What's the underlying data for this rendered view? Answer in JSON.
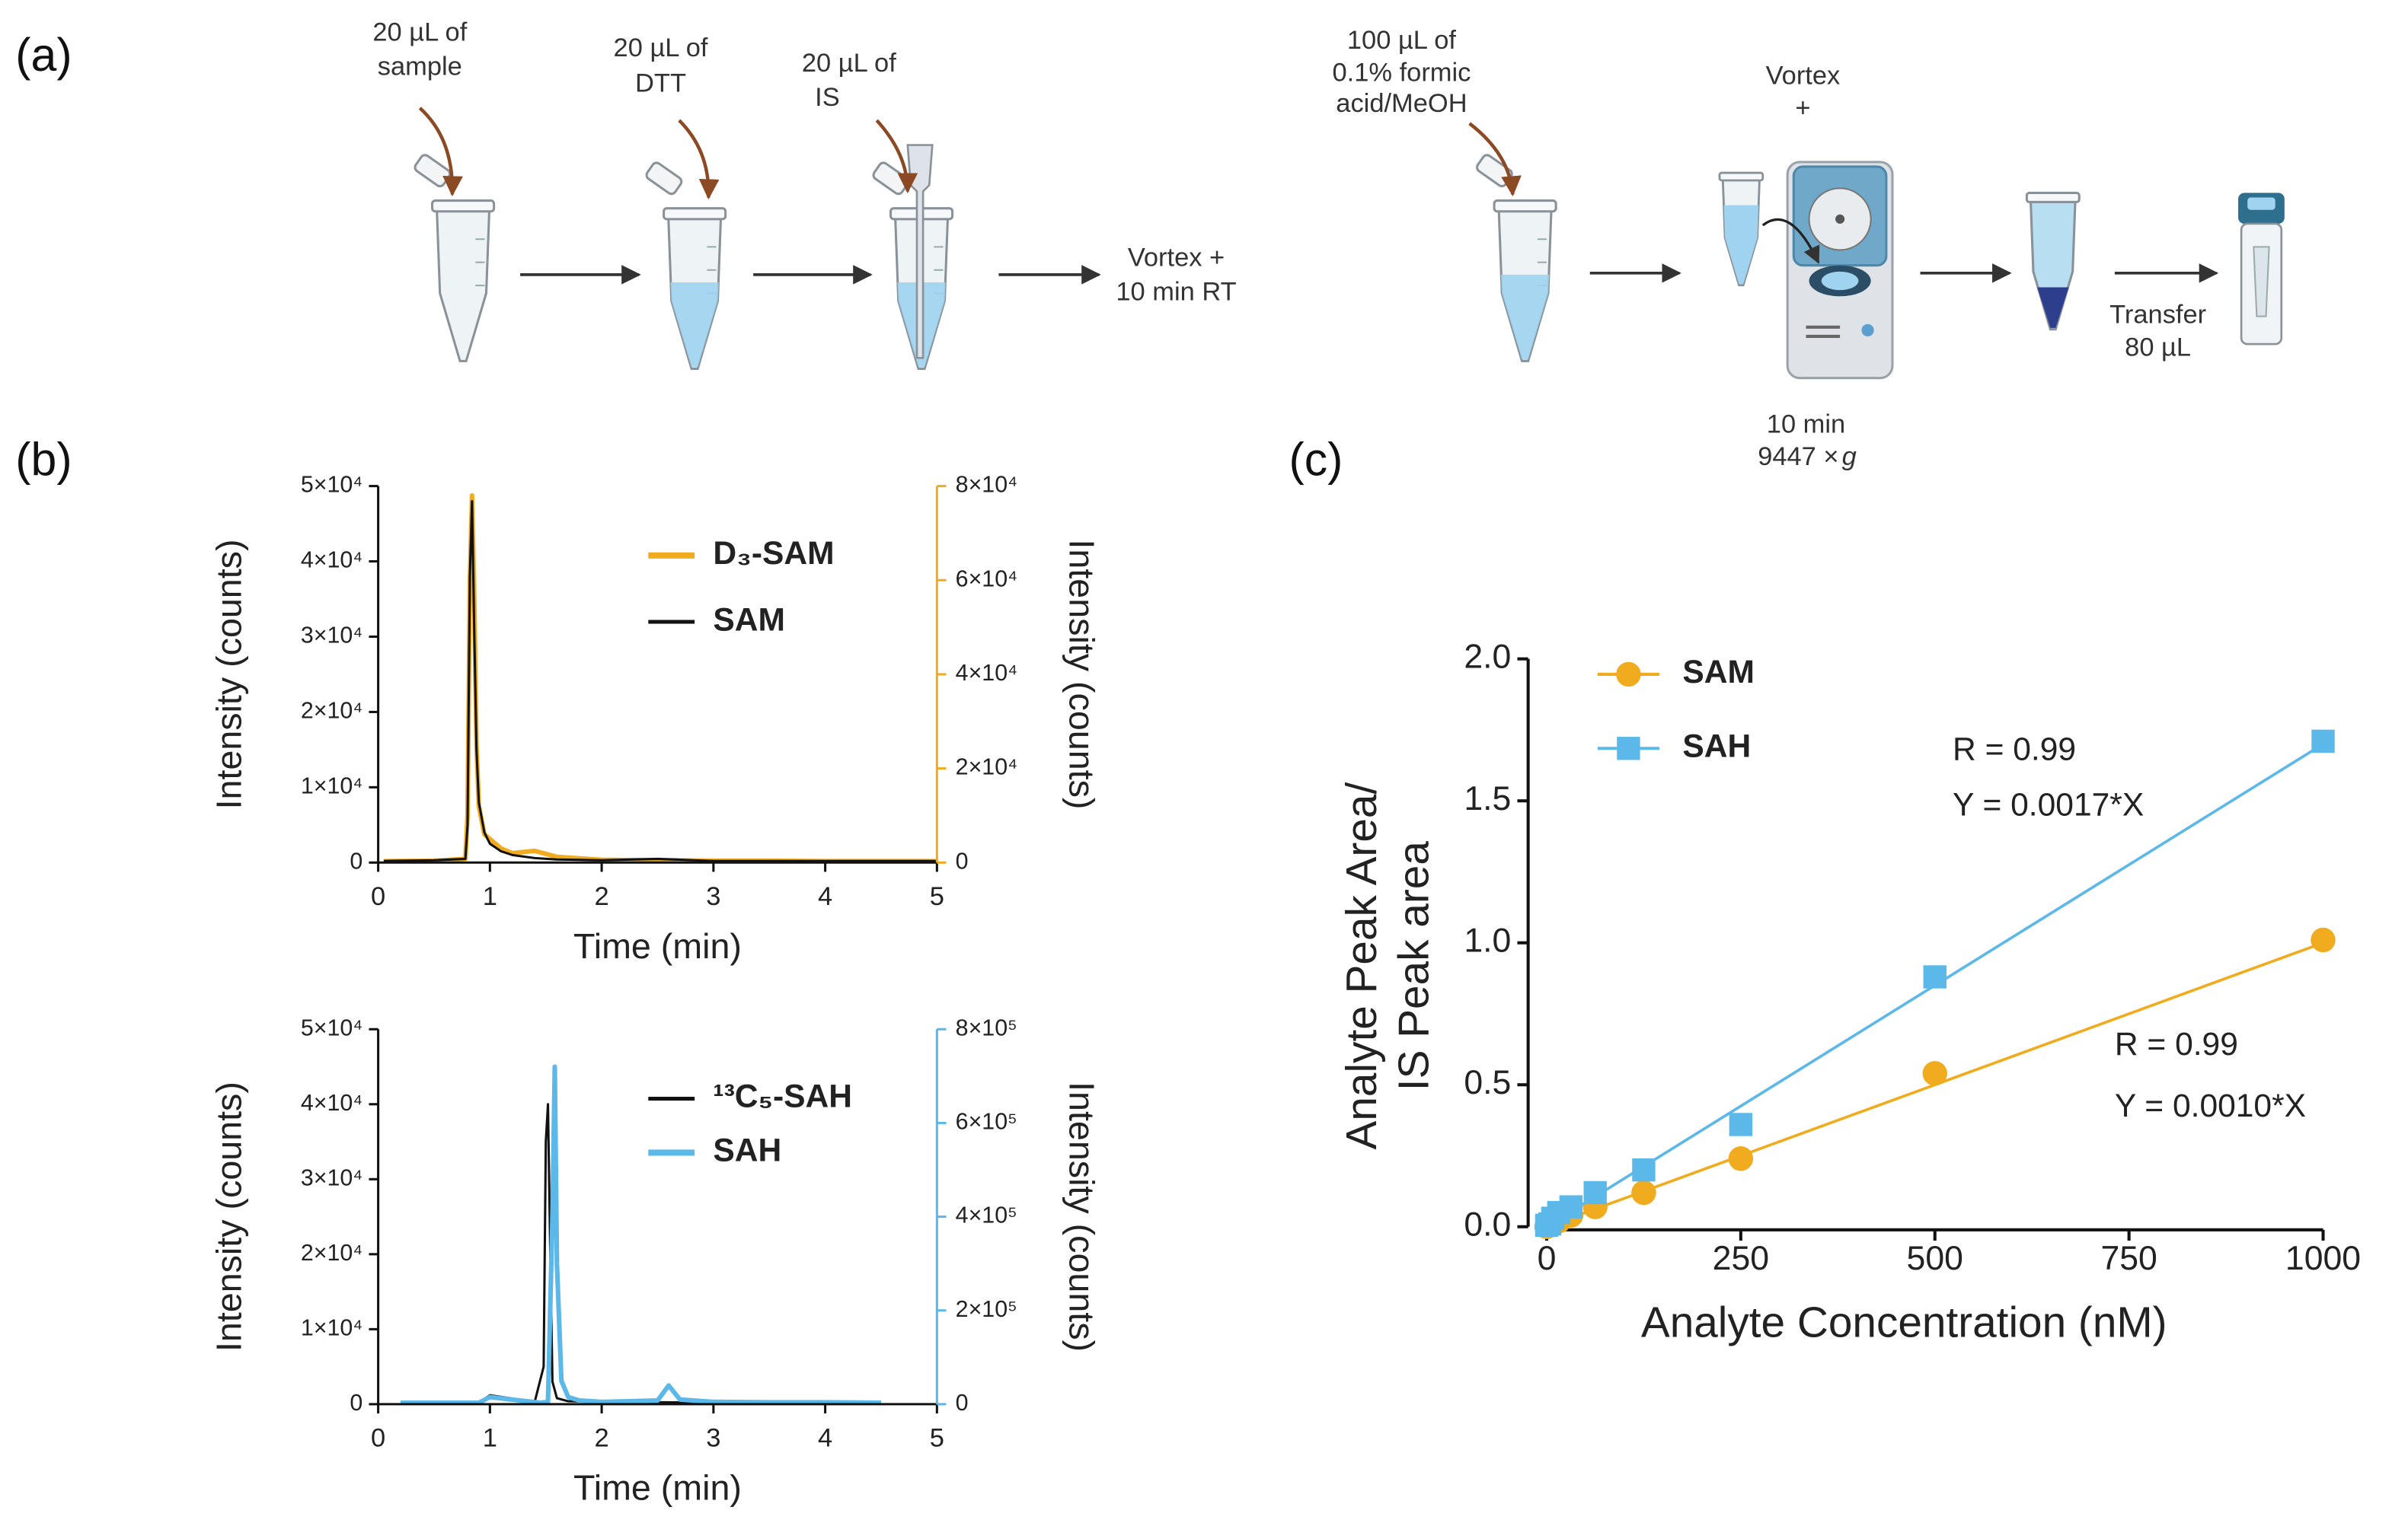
{
  "diagram": {
    "panel_label": "(a)",
    "labels": [
      {
        "lines": [
          "20 µL of",
          "sample"
        ]
      },
      {
        "lines": [
          "20 µL of",
          "DTT"
        ]
      },
      {
        "lines": [
          "20 µL of",
          "IS"
        ]
      },
      {
        "lines": [
          "Vortex +",
          "10 min RT"
        ]
      },
      {
        "lines": [
          "100 µL of",
          "0.1% formic",
          "acid/MeOH"
        ]
      },
      {
        "lines": [
          "Vortex",
          "+"
        ]
      },
      {
        "lines": [
          "10 min",
          "9447 ×"
        ],
        "italic_suffix": "g"
      },
      {
        "lines": [
          "Transfer",
          "80 µL"
        ]
      }
    ]
  },
  "chart_data": [
    {
      "type": "line",
      "panel_label": "(b)",
      "xlabel": "Time (min)",
      "ylabel": "Intensity (counts)",
      "y2label": "Intensity (counts)",
      "y2color": "#f0ac1e",
      "xlim": [
        0,
        5
      ],
      "xticks": [
        0,
        1,
        2,
        3,
        4,
        5
      ],
      "ylim": [
        0,
        50000
      ],
      "yticks": [
        0,
        {
          "value": 10000,
          "label": "1×10⁴"
        },
        {
          "value": 20000,
          "label": "2×10⁴"
        },
        {
          "value": 30000,
          "label": "3×10⁴"
        },
        {
          "value": 40000,
          "label": "4×10⁴"
        },
        {
          "value": 50000,
          "label": "5×10⁴"
        }
      ],
      "y2lim": [
        0,
        80000
      ],
      "y2ticks": [
        0,
        {
          "value": 20000,
          "label": "2×10⁴"
        },
        {
          "value": 40000,
          "label": "4×10⁴"
        },
        {
          "value": 60000,
          "label": "6×10⁴"
        },
        {
          "value": 80000,
          "label": "8×10⁴"
        }
      ],
      "series": [
        {
          "name": "D₃-SAM",
          "color": "#f0ac1e",
          "axis": "y2",
          "width": 3,
          "x": [
            0.05,
            0.5,
            0.78,
            0.8,
            0.82,
            0.84,
            0.86,
            0.88,
            0.9,
            0.95,
            1.0,
            1.1,
            1.2,
            1.4,
            1.6,
            2,
            2.5,
            3,
            3.5,
            4,
            4.5,
            5
          ],
          "values": [
            300,
            400,
            800,
            10000,
            60000,
            78000,
            55000,
            25000,
            12000,
            6000,
            5000,
            3000,
            2000,
            2500,
            1200,
            600,
            500,
            400,
            400,
            300,
            300,
            300
          ]
        },
        {
          "name": "SAM",
          "color": "#111111",
          "width": 1.5,
          "x": [
            0.05,
            0.5,
            0.78,
            0.8,
            0.82,
            0.84,
            0.86,
            0.88,
            0.9,
            0.95,
            1.0,
            1.1,
            1.2,
            1.4,
            1.6,
            2,
            2.5,
            3,
            3.5,
            4,
            4.5,
            5
          ],
          "values": [
            200,
            300,
            500,
            5000,
            38000,
            48000,
            30000,
            15000,
            8000,
            4000,
            2500,
            1500,
            1000,
            600,
            400,
            300,
            500,
            200,
            200,
            200,
            200,
            200
          ]
        }
      ]
    },
    {
      "type": "line",
      "xlabel": "Time (min)",
      "ylabel": "Intensity (counts)",
      "y2label": "Intensity (counts)",
      "y2color": "#5bb8e8",
      "xlim": [
        0,
        5
      ],
      "xticks": [
        0,
        1,
        2,
        3,
        4,
        5
      ],
      "ylim": [
        0,
        50000
      ],
      "yticks": [
        0,
        {
          "value": 10000,
          "label": "1×10⁴"
        },
        {
          "value": 20000,
          "label": "2×10⁴"
        },
        {
          "value": 30000,
          "label": "3×10⁴"
        },
        {
          "value": 40000,
          "label": "4×10⁴"
        },
        {
          "value": 50000,
          "label": "5×10⁴"
        }
      ],
      "y2lim": [
        0,
        800000
      ],
      "y2ticks": [
        0,
        {
          "value": 200000,
          "label": "2×10⁵"
        },
        {
          "value": 400000,
          "label": "4×10⁵"
        },
        {
          "value": 600000,
          "label": "6×10⁵"
        },
        {
          "value": 800000,
          "label": "8×10⁵"
        }
      ],
      "series": [
        {
          "name": "¹³C₅-SAH",
          "color": "#111111",
          "width": 1.5,
          "x": [
            0.2,
            0.9,
            1.0,
            1.4,
            1.48,
            1.5,
            1.52,
            1.54,
            1.56,
            1.6,
            1.7,
            2,
            3,
            4,
            4.5
          ],
          "values": [
            200,
            200,
            1200,
            300,
            5000,
            35000,
            40000,
            20000,
            3000,
            800,
            400,
            300,
            200,
            200,
            200
          ]
        },
        {
          "name": "SAH",
          "color": "#5bb8e8",
          "axis": "y2",
          "width": 3,
          "x": [
            0.2,
            0.9,
            1.0,
            1.45,
            1.52,
            1.56,
            1.58,
            1.6,
            1.64,
            1.7,
            1.8,
            2,
            2.5,
            2.6,
            2.7,
            3,
            3.5,
            4,
            4.5
          ],
          "values": [
            3000,
            3000,
            15000,
            3000,
            5000,
            400000,
            720000,
            300000,
            50000,
            15000,
            8000,
            5000,
            8000,
            40000,
            10000,
            5000,
            4000,
            4000,
            3000
          ]
        }
      ]
    },
    {
      "type": "scatter",
      "panel_label": "(c)",
      "xlabel": "Analyte Concentration (nM)",
      "ylabel": [
        "Analyte Peak Area/",
        "IS Peak area"
      ],
      "xlim": [
        0,
        1000
      ],
      "xticks": [
        0,
        250,
        500,
        750,
        1000
      ],
      "ylim": [
        0,
        2
      ],
      "yticks": [
        {
          "value": 0,
          "label": "0.0"
        },
        0.5,
        {
          "value": 1,
          "label": "1.0"
        },
        1.5,
        {
          "value": 2,
          "label": "2.0"
        }
      ],
      "x": [
        0,
        3.9,
        7.8,
        15.6,
        31.25,
        62.5,
        125,
        250,
        500,
        1000
      ],
      "series": [
        {
          "name": "SAM",
          "color": "#f0ac1e",
          "marker": "circle",
          "values": [
            0,
            0.005,
            0.01,
            0.02,
            0.04,
            0.07,
            0.12,
            0.24,
            0.54,
            1.01
          ],
          "fit": {
            "slope": 0.001
          },
          "annotations": [
            "R = 0.99",
            "Y = 0.0010*X"
          ]
        },
        {
          "name": "SAH",
          "color": "#5bb8e8",
          "marker": "square",
          "values": [
            0.005,
            0.01,
            0.03,
            0.05,
            0.07,
            0.12,
            0.2,
            0.36,
            0.88,
            1.71
          ],
          "fit": {
            "slope": 0.0017
          },
          "annotations": [
            "R = 0.99",
            "Y = 0.0017*X"
          ]
        }
      ]
    }
  ]
}
